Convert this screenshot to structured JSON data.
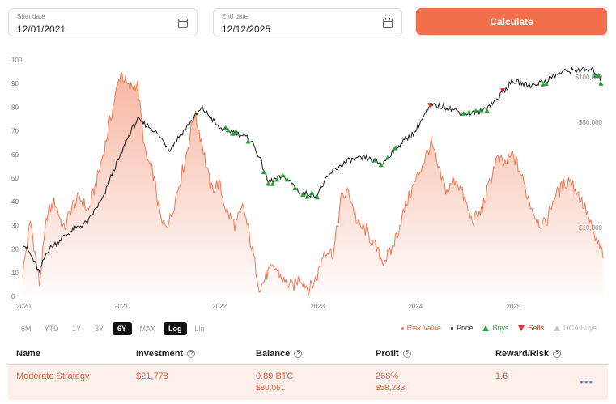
{
  "inputs": {
    "start": {
      "label": "Start date",
      "value": "12/01/2021"
    },
    "end": {
      "label": "End date",
      "value": "12/12/2025"
    },
    "calculate_label": "Calculate"
  },
  "range_buttons": [
    {
      "label": "6M",
      "active": false
    },
    {
      "label": "YTD",
      "active": false
    },
    {
      "label": "1Y",
      "active": false
    },
    {
      "label": "3Y",
      "active": false
    },
    {
      "label": "6Y",
      "active": true
    },
    {
      "label": "MAX",
      "active": false
    }
  ],
  "scale_buttons": [
    {
      "label": "Log",
      "active": true
    },
    {
      "label": "Lin",
      "active": false
    }
  ],
  "legend": {
    "risk": "Risk Value",
    "price": "Price",
    "buys": "Buys",
    "sells": "Sells",
    "dca": "DCA Buys"
  },
  "colors": {
    "accent": "#f26f4b",
    "risk_line": "#f07a55",
    "price_line": "#1a1a1a",
    "buy": "#2e9e3a",
    "sell": "#d83a2b",
    "dca": "#c9c9c9"
  },
  "table": {
    "headers": {
      "name": "Name",
      "investment": "Investment",
      "balance": "Balance",
      "profit": "Profit",
      "reward": "Reward/Risk"
    },
    "row": {
      "name": "Moderate Strategy",
      "investment": "$21,778",
      "balance_btc": "0.89 BTC",
      "balance_usd": "$80,061",
      "profit_pct": "268%",
      "profit_usd": "$58,283",
      "reward": "1.6"
    }
  },
  "chart_data": {
    "type": "line",
    "x_ticks": [
      "2020",
      "2021",
      "2022",
      "2023",
      "2024",
      "2025"
    ],
    "left_ticks": [
      "0",
      "10",
      "20",
      "30",
      "40",
      "50",
      "60",
      "70",
      "80",
      "90",
      "100"
    ],
    "right_ticks": [
      "$100,000",
      "$50,000",
      "$10,000"
    ],
    "ylim_left": [
      0,
      100
    ],
    "log_scale_price": true,
    "series": [
      {
        "name": "Risk Value",
        "x": [
          2020.0,
          2020.08,
          2020.17,
          2020.25,
          2020.33,
          2020.42,
          2020.5,
          2020.58,
          2020.67,
          2020.75,
          2020.83,
          2020.92,
          2021.0,
          2021.08,
          2021.17,
          2021.25,
          2021.33,
          2021.42,
          2021.5,
          2021.58,
          2021.67,
          2021.75,
          2021.83,
          2021.92,
          2022.0,
          2022.08,
          2022.17,
          2022.25,
          2022.33,
          2022.42,
          2022.5,
          2022.58,
          2022.67,
          2022.75,
          2022.83,
          2022.92,
          2023.0,
          2023.08,
          2023.17,
          2023.25,
          2023.33,
          2023.42,
          2023.5,
          2023.58,
          2023.67,
          2023.75,
          2023.83,
          2023.92,
          2024.0,
          2024.08,
          2024.17,
          2024.25,
          2024.33,
          2024.42,
          2024.5,
          2024.58,
          2024.67,
          2024.75,
          2024.83,
          2024.92,
          2025.0,
          2025.08,
          2025.17,
          2025.25,
          2025.33,
          2025.42,
          2025.5,
          2025.58,
          2025.67,
          2025.75,
          2025.83,
          2025.92
        ],
        "y": [
          10,
          32,
          5,
          35,
          40,
          28,
          38,
          42,
          36,
          48,
          62,
          80,
          95,
          88,
          90,
          60,
          52,
          30,
          32,
          45,
          60,
          78,
          65,
          45,
          48,
          36,
          30,
          38,
          22,
          3,
          10,
          12,
          6,
          4,
          8,
          3,
          8,
          20,
          18,
          42,
          44,
          30,
          28,
          22,
          15,
          18,
          28,
          40,
          48,
          56,
          65,
          52,
          44,
          50,
          42,
          32,
          35,
          46,
          58,
          56,
          60,
          52,
          40,
          32,
          30,
          42,
          46,
          50,
          43,
          36,
          25,
          18
        ]
      },
      {
        "name": "Price",
        "x": [
          2020.0,
          2020.17,
          2020.25,
          2020.5,
          2020.67,
          2020.83,
          2021.0,
          2021.17,
          2021.33,
          2021.5,
          2021.67,
          2021.83,
          2022.0,
          2022.17,
          2022.33,
          2022.5,
          2022.67,
          2022.83,
          2023.0,
          2023.17,
          2023.33,
          2023.5,
          2023.67,
          2023.83,
          2024.0,
          2024.17,
          2024.33,
          2024.5,
          2024.67,
          2024.83,
          2025.0,
          2025.17,
          2025.33,
          2025.5,
          2025.67,
          2025.83,
          2025.92
        ],
        "y": [
          8000,
          5000,
          7000,
          9500,
          11000,
          16000,
          30000,
          52000,
          45000,
          33000,
          46000,
          62000,
          46000,
          43000,
          38000,
          20000,
          22000,
          17000,
          16500,
          24000,
          28000,
          29000,
          26500,
          35000,
          43000,
          65000,
          63000,
          57000,
          59000,
          70000,
          94000,
          88000,
          94000,
          108000,
          112000,
          110000,
          90000
        ]
      }
    ]
  }
}
